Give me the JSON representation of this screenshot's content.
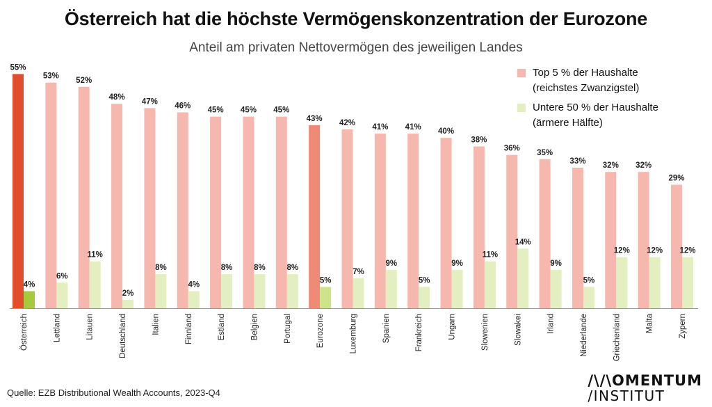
{
  "header": {
    "title": "Österreich hat die höchste Vermögenskonzentration der Eurozone",
    "subtitle": "Anteil am privaten Nettovermögen des jeweiligen Landes"
  },
  "legend": {
    "top5_line1": "Top 5 % der Haushalte",
    "top5_line2": "(reichstes Zwanzigstel)",
    "bottom50_line1": "Untere 50 % der Haushalte",
    "bottom50_line2": "(ärmere Hälfte)"
  },
  "footer": {
    "source": "Quelle: EZB Distributional Wealth Accounts, 2023-Q4",
    "logo_line1": "/\\/\\OMENTUM",
    "logo_line2": "/INSTITUT"
  },
  "colors": {
    "top5": "#f6b8ae",
    "bottom50": "#e3efc0",
    "top5_highlight_austria": "#e04e2b",
    "bottom50_highlight_austria": "#a7c93c",
    "top5_highlight_eurozone": "#ef8a76",
    "bottom50_highlight_eurozone": "#cde48a"
  },
  "chart_data": {
    "type": "bar",
    "categories": [
      "Österreich",
      "Lettland",
      "Litauen",
      "Deutschland",
      "Italien",
      "Finnland",
      "Estland",
      "Belgien",
      "Portugal",
      "Eurozone",
      "Luxemburg",
      "Spanien",
      "Frankreich",
      "Ungarn",
      "Slowenien",
      "Slowakei",
      "Irland",
      "Niederlande",
      "Griechenland",
      "Malta",
      "Zypern"
    ],
    "series": [
      {
        "name": "Top 5 % der Haushalte (reichstes Zwanzigstel)",
        "values": [
          55,
          53,
          52,
          48,
          47,
          46,
          45,
          45,
          45,
          43,
          42,
          41,
          41,
          40,
          38,
          36,
          35,
          33,
          32,
          32,
          29
        ],
        "labels": [
          "55%",
          "53%",
          "52%",
          "48%",
          "47%",
          "46%",
          "45%",
          "45%",
          "45%",
          "43%",
          "42%",
          "41%",
          "41%",
          "40%",
          "38%",
          "36%",
          "35%",
          "33%",
          "32%",
          "32%",
          "29%"
        ]
      },
      {
        "name": "Untere 50 % der Haushalte (ärmere Hälfte)",
        "values": [
          4,
          6,
          11,
          2,
          8,
          4,
          8,
          8,
          8,
          5,
          7,
          9,
          5,
          9,
          11,
          14,
          9,
          5,
          12,
          12,
          12
        ],
        "labels": [
          "4%",
          "6%",
          "11%",
          "2%",
          "8%",
          "4%",
          "8%",
          "8%",
          "8%",
          "5%",
          "7%",
          "9%",
          "5%",
          "9%",
          "11%",
          "14%",
          "9%",
          "5%",
          "12%",
          "12%",
          "12%"
        ]
      }
    ],
    "highlights": [
      "Österreich",
      "Eurozone"
    ],
    "ylim": [
      0,
      55
    ],
    "grid": false,
    "legend_position": "top-right"
  }
}
